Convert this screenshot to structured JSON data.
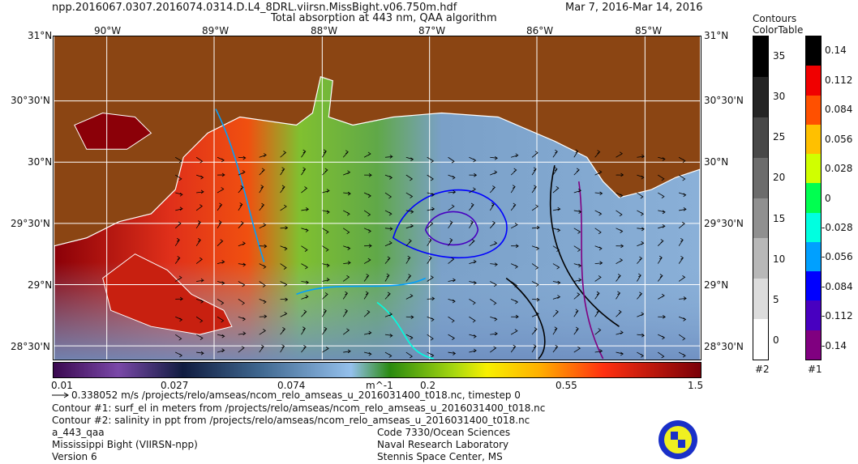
{
  "header": {
    "filename": "npp.2016067.0307.2016074.0314.D.L4_8DRL.viirsn.MissBight.v06.750m.hdf",
    "date_range": "Mar  7, 2016-Mar 14, 2016",
    "title": "Total absorption at 443 nm, QAA algorithm"
  },
  "map": {
    "lon_labels": [
      "90°W",
      "89°W",
      "88°W",
      "87°W",
      "86°W",
      "85°W"
    ],
    "lat_labels": [
      "31°N",
      "30°30'N",
      "30°N",
      "29°30'N",
      "29°N",
      "28°30'N"
    ],
    "land_color": "#8b4513"
  },
  "colorbar": {
    "ticks": [
      "0.01",
      "0.027",
      "0.074",
      "0.2",
      "0.55",
      "1.5"
    ],
    "unit": "m^-1",
    "scale": "log"
  },
  "contour_legend": {
    "title1": "Contours",
    "title2": "ColorTable",
    "bar2": {
      "label": "#2",
      "ticks": [
        "35",
        "30",
        "25",
        "20",
        "15",
        "10",
        "5",
        "0"
      ],
      "colors": [
        "#000000",
        "#242424",
        "#484848",
        "#6c6c6c",
        "#909090",
        "#b8b8b8",
        "#dcdcdc",
        "#ffffff"
      ]
    },
    "bar1": {
      "label": "#1",
      "ticks": [
        "0.14",
        "0.112",
        "0.084",
        "0.056",
        "0.028",
        "0",
        "-0.028",
        "-0.056",
        "-0.084",
        "-0.112",
        "-0.14"
      ],
      "colors": [
        "#000000",
        "#f00000",
        "#ff5000",
        "#ffc000",
        "#d0ff00",
        "#00ff50",
        "#00ffe0",
        "#00a0ff",
        "#0000ff",
        "#4800c0",
        "#800080"
      ]
    }
  },
  "footer": {
    "vector": "0.338052 m/s /projects/relo/amseas/ncom_relo_amseas_u_2016031400_t018.nc, timestep 0",
    "contour1": "Contour #1: surf_el in meters from /projects/relo/amseas/ncom_relo_amseas_u_2016031400_t018.nc",
    "contour2": "Contour #2: salinity in ppt from /projects/relo/amseas/ncom_relo_amseas_u_2016031400_t018.nc",
    "product": "a_443_qaa",
    "region": "Mississippi Bight (VIIRSN-npp)",
    "version": "Version 6",
    "org1": "Code 7330/Ocean Sciences",
    "org2": "Naval Research Laboratory",
    "org3": "Stennis Space Center, MS"
  }
}
